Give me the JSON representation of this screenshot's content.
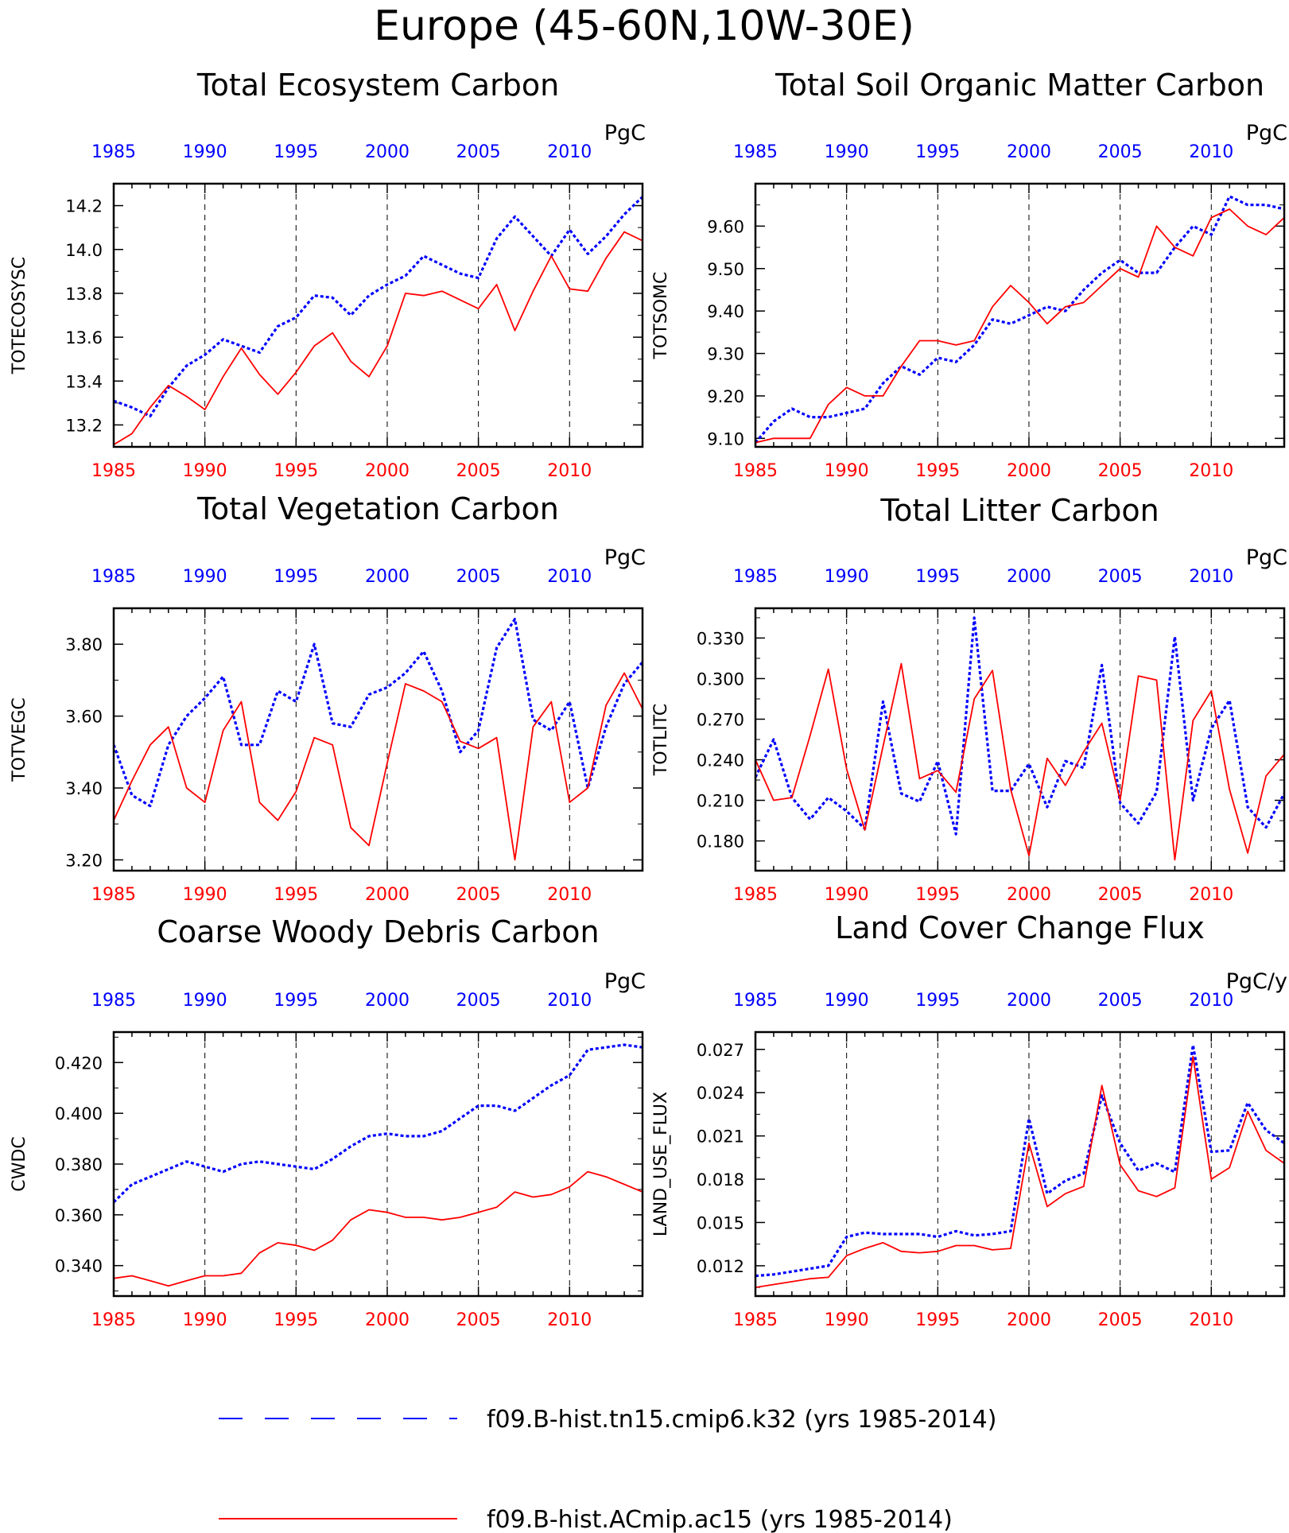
{
  "title": "Europe (45-60N,10W-30E)",
  "colors": {
    "series_blue": "#0000ff",
    "series_red": "#ff0000",
    "axis": "#000000"
  },
  "legend": [
    {
      "label": "f09.B-hist.tn15.cmip6.k32 (yrs 1985-2014)",
      "color": "#0000ff",
      "style": "dashed"
    },
    {
      "label": "f09.B-hist.ACmip.ac15 (yrs 1985-2014)",
      "color": "#ff0000",
      "style": "solid"
    }
  ],
  "chart_data": [
    {
      "type": "line",
      "title": "Total Ecosystem Carbon",
      "units": "PgC",
      "ylabel": "TOTECOSYSC",
      "xlim": [
        1985,
        2014
      ],
      "ylim": [
        13.1,
        14.3
      ],
      "xticks": [
        1985,
        1990,
        1995,
        2000,
        2005,
        2010
      ],
      "yticks": [
        "13.2",
        "13.4",
        "13.6",
        "13.8",
        "14.0",
        "14.2"
      ],
      "x": [
        1985,
        1986,
        1987,
        1988,
        1989,
        1990,
        1991,
        1992,
        1993,
        1994,
        1995,
        1996,
        1997,
        1998,
        1999,
        2000,
        2001,
        2002,
        2003,
        2004,
        2005,
        2006,
        2007,
        2008,
        2009,
        2010,
        2011,
        2012,
        2013,
        2014
      ],
      "series": [
        {
          "name": "f09.B-hist.tn15.cmip6.k32 (yrs 1985-2014)",
          "color": "#0000ff",
          "dashed": true,
          "values": [
            13.31,
            13.28,
            13.24,
            13.37,
            13.47,
            13.52,
            13.59,
            13.56,
            13.53,
            13.65,
            13.69,
            13.79,
            13.78,
            13.7,
            13.79,
            13.84,
            13.88,
            13.97,
            13.93,
            13.89,
            13.87,
            14.05,
            14.15,
            14.06,
            13.97,
            14.09,
            13.98,
            14.06,
            14.16,
            14.24
          ]
        },
        {
          "name": "f09.B-hist.ACmip.ac15 (yrs 1985-2014)",
          "color": "#ff0000",
          "dashed": false,
          "values": [
            13.11,
            13.16,
            13.28,
            13.38,
            13.33,
            13.27,
            13.42,
            13.55,
            13.43,
            13.34,
            13.44,
            13.56,
            13.62,
            13.49,
            13.42,
            13.56,
            13.8,
            13.79,
            13.81,
            13.77,
            13.73,
            13.84,
            13.63,
            13.81,
            13.97,
            13.82,
            13.81,
            13.96,
            14.08,
            14.04
          ]
        }
      ]
    },
    {
      "type": "line",
      "title": "Total Soil Organic Matter Carbon",
      "units": "PgC",
      "ylabel": "TOTSOMC",
      "xlim": [
        1985,
        2014
      ],
      "ylim": [
        9.08,
        9.7
      ],
      "xticks": [
        1985,
        1990,
        1995,
        2000,
        2005,
        2010
      ],
      "yticks": [
        "9.10",
        "9.20",
        "9.30",
        "9.40",
        "9.50",
        "9.60"
      ],
      "x": [
        1985,
        1986,
        1987,
        1988,
        1989,
        1990,
        1991,
        1992,
        1993,
        1994,
        1995,
        1996,
        1997,
        1998,
        1999,
        2000,
        2001,
        2002,
        2003,
        2004,
        2005,
        2006,
        2007,
        2008,
        2009,
        2010,
        2011,
        2012,
        2013,
        2014
      ],
      "series": [
        {
          "name": "f09.B-hist.tn15.cmip6.k32 (yrs 1985-2014)",
          "color": "#0000ff",
          "dashed": true,
          "values": [
            9.09,
            9.14,
            9.17,
            9.15,
            9.15,
            9.16,
            9.17,
            9.23,
            9.27,
            9.25,
            9.29,
            9.28,
            9.32,
            9.38,
            9.37,
            9.39,
            9.41,
            9.4,
            9.45,
            9.49,
            9.52,
            9.49,
            9.49,
            9.55,
            9.6,
            9.58,
            9.67,
            9.65,
            9.65,
            9.64
          ]
        },
        {
          "name": "f09.B-hist.ACmip.ac15 (yrs 1985-2014)",
          "color": "#ff0000",
          "dashed": false,
          "values": [
            9.09,
            9.1,
            9.1,
            9.1,
            9.18,
            9.22,
            9.2,
            9.2,
            9.27,
            9.33,
            9.33,
            9.32,
            9.33,
            9.41,
            9.46,
            9.42,
            9.37,
            9.41,
            9.42,
            9.46,
            9.5,
            9.48,
            9.6,
            9.55,
            9.53,
            9.62,
            9.64,
            9.6,
            9.58,
            9.62
          ]
        }
      ]
    },
    {
      "type": "line",
      "title": "Total Vegetation Carbon",
      "units": "PgC",
      "ylabel": "TOTVEGC",
      "xlim": [
        1985,
        2014
      ],
      "ylim": [
        3.17,
        3.9
      ],
      "xticks": [
        1985,
        1990,
        1995,
        2000,
        2005,
        2010
      ],
      "yticks": [
        "3.20",
        "3.40",
        "3.60",
        "3.80"
      ],
      "x": [
        1985,
        1986,
        1987,
        1988,
        1989,
        1990,
        1991,
        1992,
        1993,
        1994,
        1995,
        1996,
        1997,
        1998,
        1999,
        2000,
        2001,
        2002,
        2003,
        2004,
        2005,
        2006,
        2007,
        2008,
        2009,
        2010,
        2011,
        2012,
        2013,
        2014
      ],
      "series": [
        {
          "name": "f09.B-hist.tn15.cmip6.k32 (yrs 1985-2014)",
          "color": "#0000ff",
          "dashed": true,
          "values": [
            3.52,
            3.38,
            3.35,
            3.52,
            3.6,
            3.65,
            3.71,
            3.52,
            3.52,
            3.67,
            3.64,
            3.8,
            3.58,
            3.57,
            3.66,
            3.68,
            3.72,
            3.78,
            3.67,
            3.5,
            3.56,
            3.79,
            3.87,
            3.59,
            3.56,
            3.64,
            3.4,
            3.57,
            3.69,
            3.75
          ]
        },
        {
          "name": "f09.B-hist.ACmip.ac15 (yrs 1985-2014)",
          "color": "#ff0000",
          "dashed": false,
          "values": [
            3.31,
            3.42,
            3.52,
            3.57,
            3.4,
            3.36,
            3.56,
            3.64,
            3.36,
            3.31,
            3.39,
            3.54,
            3.52,
            3.29,
            3.24,
            3.47,
            3.69,
            3.67,
            3.64,
            3.53,
            3.51,
            3.54,
            3.2,
            3.57,
            3.64,
            3.36,
            3.4,
            3.63,
            3.72,
            3.62
          ]
        }
      ]
    },
    {
      "type": "line",
      "title": "Total Litter Carbon",
      "units": "PgC",
      "ylabel": "TOTLITC",
      "xlim": [
        1985,
        2014
      ],
      "ylim": [
        0.158,
        0.352
      ],
      "xticks": [
        1985,
        1990,
        1995,
        2000,
        2005,
        2010
      ],
      "yticks": [
        "0.180",
        "0.210",
        "0.240",
        "0.270",
        "0.300",
        "0.330"
      ],
      "x": [
        1985,
        1986,
        1987,
        1988,
        1989,
        1990,
        1991,
        1992,
        1993,
        1994,
        1995,
        1996,
        1997,
        1998,
        1999,
        2000,
        2001,
        2002,
        2003,
        2004,
        2005,
        2006,
        2007,
        2008,
        2009,
        2010,
        2011,
        2012,
        2013,
        2014
      ],
      "series": [
        {
          "name": "f09.B-hist.tn15.cmip6.k32 (yrs 1985-2014)",
          "color": "#0000ff",
          "dashed": true,
          "values": [
            0.227,
            0.255,
            0.212,
            0.196,
            0.212,
            0.202,
            0.189,
            0.283,
            0.215,
            0.209,
            0.239,
            0.185,
            0.345,
            0.217,
            0.217,
            0.237,
            0.205,
            0.239,
            0.234,
            0.31,
            0.208,
            0.193,
            0.216,
            0.331,
            0.21,
            0.263,
            0.284,
            0.205,
            0.19,
            0.215
          ]
        },
        {
          "name": "f09.B-hist.ACmip.ac15 (yrs 1985-2014)",
          "color": "#ff0000",
          "dashed": false,
          "values": [
            0.24,
            0.21,
            0.212,
            0.258,
            0.307,
            0.233,
            0.188,
            0.25,
            0.311,
            0.226,
            0.232,
            0.216,
            0.285,
            0.306,
            0.218,
            0.169,
            0.241,
            0.221,
            0.246,
            0.267,
            0.21,
            0.302,
            0.299,
            0.166,
            0.269,
            0.291,
            0.218,
            0.171,
            0.228,
            0.244
          ]
        }
      ]
    },
    {
      "type": "line",
      "title": "Coarse Woody Debris Carbon",
      "units": "PgC",
      "ylabel": "CWDC",
      "xlim": [
        1985,
        2014
      ],
      "ylim": [
        0.328,
        0.432
      ],
      "xticks": [
        1985,
        1990,
        1995,
        2000,
        2005,
        2010
      ],
      "yticks": [
        "0.340",
        "0.360",
        "0.380",
        "0.400",
        "0.420"
      ],
      "x": [
        1985,
        1986,
        1987,
        1988,
        1989,
        1990,
        1991,
        1992,
        1993,
        1994,
        1995,
        1996,
        1997,
        1998,
        1999,
        2000,
        2001,
        2002,
        2003,
        2004,
        2005,
        2006,
        2007,
        2008,
        2009,
        2010,
        2011,
        2012,
        2013,
        2014
      ],
      "series": [
        {
          "name": "f09.B-hist.tn15.cmip6.k32 (yrs 1985-2014)",
          "color": "#0000ff",
          "dashed": true,
          "values": [
            0.365,
            0.372,
            0.375,
            0.378,
            0.381,
            0.379,
            0.377,
            0.38,
            0.381,
            0.38,
            0.379,
            0.378,
            0.382,
            0.387,
            0.391,
            0.392,
            0.391,
            0.391,
            0.393,
            0.398,
            0.403,
            0.403,
            0.401,
            0.406,
            0.411,
            0.415,
            0.425,
            0.426,
            0.427,
            0.426
          ]
        },
        {
          "name": "f09.B-hist.ACmip.ac15 (yrs 1985-2014)",
          "color": "#ff0000",
          "dashed": false,
          "values": [
            0.335,
            0.336,
            0.334,
            0.332,
            0.334,
            0.336,
            0.336,
            0.337,
            0.345,
            0.349,
            0.348,
            0.346,
            0.35,
            0.358,
            0.362,
            0.361,
            0.359,
            0.359,
            0.358,
            0.359,
            0.361,
            0.363,
            0.369,
            0.367,
            0.368,
            0.371,
            0.377,
            0.375,
            0.372,
            0.369
          ]
        }
      ]
    },
    {
      "type": "line",
      "title": "Land Cover Change Flux",
      "units": "PgC/y",
      "ylabel": "LAND_USE_FLUX",
      "xlim": [
        1985,
        2014
      ],
      "ylim": [
        0.0099,
        0.0282
      ],
      "xticks": [
        1985,
        1990,
        1995,
        2000,
        2005,
        2010
      ],
      "yticks": [
        "0.012",
        "0.015",
        "0.018",
        "0.021",
        "0.024",
        "0.027"
      ],
      "x": [
        1985,
        1986,
        1987,
        1988,
        1989,
        1990,
        1991,
        1992,
        1993,
        1994,
        1995,
        1996,
        1997,
        1998,
        1999,
        2000,
        2001,
        2002,
        2003,
        2004,
        2005,
        2006,
        2007,
        2008,
        2009,
        2010,
        2011,
        2012,
        2013,
        2014
      ],
      "series": [
        {
          "name": "f09.B-hist.tn15.cmip6.k32 (yrs 1985-2014)",
          "color": "#0000ff",
          "dashed": true,
          "values": [
            0.0113,
            0.0114,
            0.0116,
            0.0118,
            0.012,
            0.014,
            0.0143,
            0.0142,
            0.0142,
            0.0142,
            0.014,
            0.0144,
            0.0141,
            0.0142,
            0.0144,
            0.0222,
            0.017,
            0.0179,
            0.0184,
            0.0238,
            0.0205,
            0.0186,
            0.0191,
            0.0185,
            0.0273,
            0.0199,
            0.02,
            0.0233,
            0.0214,
            0.0205
          ]
        },
        {
          "name": "f09.B-hist.ACmip.ac15 (yrs 1985-2014)",
          "color": "#ff0000",
          "dashed": false,
          "values": [
            0.0105,
            0.0107,
            0.0109,
            0.0111,
            0.0112,
            0.0127,
            0.0132,
            0.0136,
            0.013,
            0.0129,
            0.013,
            0.0134,
            0.0134,
            0.0131,
            0.0132,
            0.0205,
            0.0161,
            0.017,
            0.0175,
            0.0245,
            0.019,
            0.0172,
            0.0168,
            0.0174,
            0.0265,
            0.018,
            0.0188,
            0.0227,
            0.02,
            0.0191
          ]
        }
      ]
    }
  ]
}
